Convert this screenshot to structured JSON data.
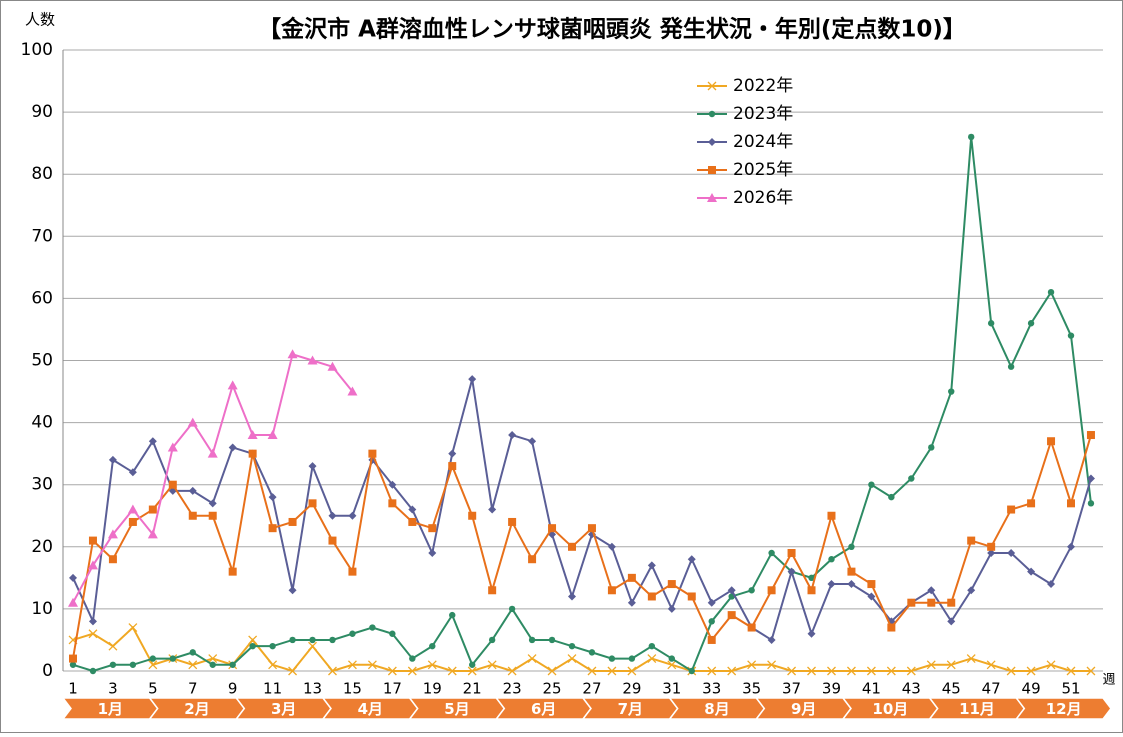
{
  "chart_data": {
    "type": "line",
    "title": "【金沢市 A群溶血性レンサ球菌咽頭炎 発生状況・年別(定点数10)】",
    "y_label": "人数",
    "x_label": "週",
    "categories": [
      1,
      null,
      3,
      null,
      5,
      null,
      7,
      null,
      9,
      null,
      11,
      null,
      13,
      null,
      15,
      null,
      17,
      null,
      19,
      null,
      21,
      null,
      23,
      null,
      25,
      null,
      27,
      null,
      29,
      null,
      31,
      null,
      33,
      null,
      35,
      null,
      37,
      null,
      39,
      null,
      41,
      null,
      43,
      null,
      45,
      null,
      47,
      null,
      49,
      null,
      51,
      null
    ],
    "months": [
      "1月",
      "2月",
      "3月",
      "4月",
      "5月",
      "6月",
      "7月",
      "8月",
      "9月",
      "10月",
      "11月",
      "12月"
    ],
    "ylim": [
      0,
      100
    ],
    "yticks": [
      0,
      10,
      20,
      30,
      40,
      50,
      60,
      70,
      80,
      90,
      100
    ],
    "grid": true,
    "series": [
      {
        "name": "2022年",
        "color": "#f0a823",
        "marker": "x",
        "values": [
          5,
          6,
          4,
          7,
          1,
          2,
          1,
          2,
          1,
          5,
          1,
          0,
          4,
          0,
          1,
          1,
          0,
          0,
          1,
          0,
          0,
          1,
          0,
          2,
          0,
          2,
          0,
          0,
          0,
          2,
          1,
          0,
          0,
          0,
          1,
          1,
          0,
          0,
          0,
          0,
          0,
          0,
          0,
          1,
          1,
          2,
          1,
          0,
          0,
          1,
          0,
          0
        ]
      },
      {
        "name": "2023年",
        "color": "#2e8b64",
        "marker": "circle",
        "values": [
          1,
          0,
          1,
          1,
          2,
          2,
          3,
          1,
          1,
          4,
          4,
          5,
          5,
          5,
          6,
          7,
          6,
          2,
          4,
          9,
          1,
          5,
          10,
          5,
          5,
          4,
          3,
          2,
          2,
          4,
          2,
          0,
          8,
          12,
          13,
          19,
          16,
          15,
          18,
          20,
          30,
          28,
          31,
          36,
          45,
          86,
          56,
          49,
          56,
          61,
          54,
          27
        ]
      },
      {
        "name": "2024年",
        "color": "#5a5e96",
        "marker": "diamond",
        "values": [
          15,
          8,
          34,
          32,
          37,
          29,
          29,
          27,
          36,
          35,
          28,
          13,
          33,
          25,
          25,
          34,
          30,
          26,
          19,
          35,
          47,
          26,
          38,
          37,
          22,
          12,
          22,
          20,
          11,
          17,
          10,
          18,
          11,
          13,
          7,
          5,
          16,
          6,
          14,
          14,
          12,
          8,
          11,
          13,
          8,
          13,
          19,
          19,
          16,
          14,
          20,
          31
        ]
      },
      {
        "name": "2025年",
        "color": "#e8701a",
        "marker": "square",
        "values": [
          2,
          21,
          18,
          24,
          26,
          30,
          25,
          25,
          16,
          35,
          23,
          24,
          27,
          21,
          16,
          35,
          27,
          24,
          23,
          33,
          25,
          13,
          24,
          18,
          23,
          20,
          23,
          13,
          15,
          12,
          14,
          12,
          5,
          9,
          7,
          13,
          19,
          13,
          25,
          16,
          14,
          7,
          11,
          11,
          11,
          21,
          20,
          26,
          27,
          37,
          27,
          38
        ]
      },
      {
        "name": "2026年",
        "color": "#ee6fc8",
        "marker": "triangle",
        "values": [
          11,
          17,
          22,
          26,
          22,
          36,
          40,
          35,
          46,
          38,
          38,
          51,
          50,
          49,
          45,
          null,
          null,
          null,
          null,
          null,
          null,
          null,
          null,
          null,
          null,
          null,
          null,
          null,
          null,
          null,
          null,
          null,
          null,
          null,
          null,
          null,
          null,
          null,
          null,
          null,
          null,
          null,
          null,
          null,
          null,
          null,
          null,
          null,
          null,
          null,
          null,
          null
        ]
      }
    ]
  }
}
